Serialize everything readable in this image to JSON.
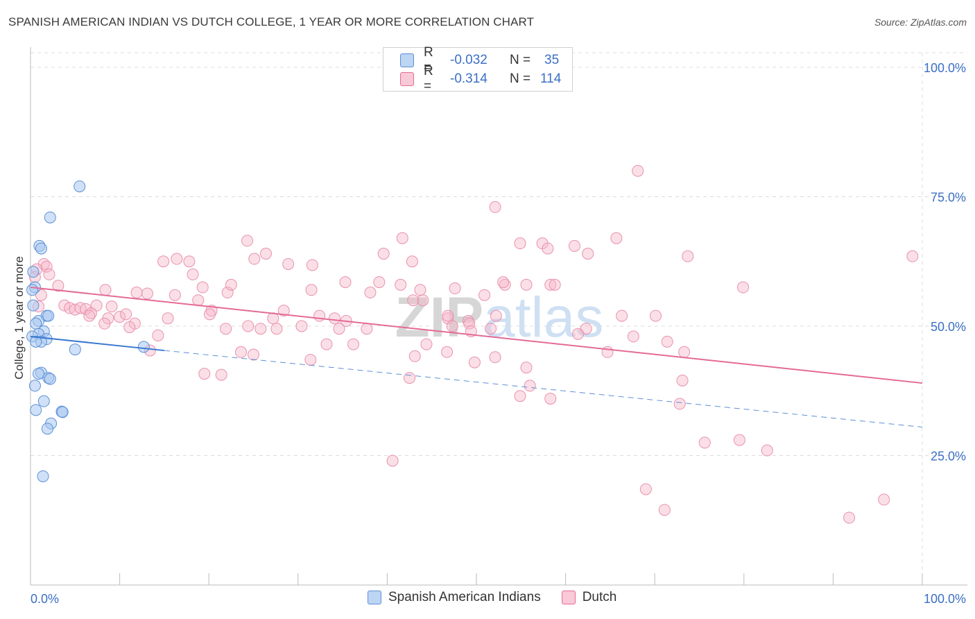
{
  "title": "SPANISH AMERICAN INDIAN VS DUTCH COLLEGE, 1 YEAR OR MORE CORRELATION CHART",
  "source": "Source: ZipAtlas.com",
  "watermark": "ZIPatlas",
  "colors": {
    "blue": "#5b8fd6",
    "blue_fill": "#a9c8f0",
    "pink": "#e46a96",
    "pink_fill": "#f6b8ca",
    "axis_label": "#3b6fc5"
  },
  "legend": {
    "rows": [
      {
        "r_label": "R =",
        "r_value": "-0.032",
        "n_label": "N =",
        "n_value": "35"
      },
      {
        "r_label": "R =",
        "r_value": "-0.314",
        "n_label": "N =",
        "n_value": "114"
      }
    ]
  },
  "bottom_legend": {
    "series1": "Spanish American Indians",
    "series2": "Dutch"
  },
  "chart_data": {
    "type": "scatter",
    "title": "SPANISH AMERICAN INDIAN VS DUTCH COLLEGE, 1 YEAR OR MORE CORRELATION CHART",
    "xlabel": "",
    "ylabel": "College, 1 year or more",
    "xlim": [
      0,
      100
    ],
    "ylim": [
      0,
      105
    ],
    "x_tick_labels": {
      "left": "0.0%",
      "right": "100.0%"
    },
    "y_ticks": [
      {
        "value": 25,
        "label": "25.0%"
      },
      {
        "value": 50,
        "label": "50.0%"
      },
      {
        "value": 75,
        "label": "75.0%"
      },
      {
        "value": 100,
        "label": "100.0%"
      }
    ],
    "grid": true,
    "series": [
      {
        "name": "Spanish American Indians",
        "color": "#5b8fd6",
        "trend": {
          "x0": 0,
          "y0": 48,
          "x1": 15,
          "y1": 45.3,
          "dash_x1": 100,
          "dash_y1": 30.5
        },
        "points": [
          [
            5.5,
            77
          ],
          [
            2.2,
            71
          ],
          [
            1.0,
            65.5
          ],
          [
            1.2,
            65
          ],
          [
            0.3,
            60.5
          ],
          [
            0.5,
            57.5
          ],
          [
            0.2,
            57
          ],
          [
            0.3,
            54
          ],
          [
            1.8,
            52
          ],
          [
            2.0,
            52
          ],
          [
            0.9,
            51
          ],
          [
            0.6,
            50.5
          ],
          [
            1.5,
            49
          ],
          [
            0.9,
            48.5
          ],
          [
            0.2,
            48
          ],
          [
            1.8,
            47.5
          ],
          [
            1.2,
            47
          ],
          [
            0.6,
            47
          ],
          [
            5.0,
            45.5
          ],
          [
            12.7,
            46
          ],
          [
            1.2,
            41
          ],
          [
            0.9,
            40.8
          ],
          [
            2.0,
            40
          ],
          [
            2.2,
            39.8
          ],
          [
            0.5,
            38.5
          ],
          [
            1.5,
            35.5
          ],
          [
            3.5,
            33.5
          ],
          [
            3.6,
            33.4
          ],
          [
            0.6,
            33.8
          ],
          [
            2.3,
            31.2
          ],
          [
            1.9,
            30.2
          ],
          [
            1.4,
            21
          ]
        ]
      },
      {
        "name": "Dutch",
        "color": "#e46a96",
        "trend": {
          "x0": 0,
          "y0": 57.5,
          "x1": 100,
          "y1": 39.0
        },
        "points": [
          [
            1.5,
            62
          ],
          [
            1.8,
            61.5
          ],
          [
            0.7,
            61
          ],
          [
            2.1,
            60
          ],
          [
            0.5,
            59.5
          ],
          [
            3.1,
            57.8
          ],
          [
            1.2,
            56
          ],
          [
            0.9,
            53.8
          ],
          [
            3.8,
            54
          ],
          [
            4.4,
            53.5
          ],
          [
            5.0,
            53.2
          ],
          [
            5.6,
            53.5
          ],
          [
            6.2,
            53.3
          ],
          [
            7.4,
            54
          ],
          [
            9.1,
            53.8
          ],
          [
            6.8,
            52.5
          ],
          [
            8.7,
            51.5
          ],
          [
            10.0,
            51.8
          ],
          [
            10.7,
            52.3
          ],
          [
            8.4,
            57
          ],
          [
            11.9,
            56.5
          ],
          [
            13.1,
            56.3
          ],
          [
            14.9,
            62.5
          ],
          [
            16.4,
            63
          ],
          [
            17.8,
            62.5
          ],
          [
            18.2,
            60
          ],
          [
            19.3,
            57.5
          ],
          [
            22.1,
            56.5
          ],
          [
            16.2,
            56
          ],
          [
            18.8,
            55
          ],
          [
            15.4,
            51.5
          ],
          [
            11.7,
            50.5
          ],
          [
            8.3,
            50.5
          ],
          [
            20.3,
            53
          ],
          [
            20.1,
            52.3
          ],
          [
            22.5,
            58
          ],
          [
            24.3,
            66.5
          ],
          [
            25.1,
            63
          ],
          [
            26.4,
            64
          ],
          [
            28.9,
            62
          ],
          [
            31.6,
            61.8
          ],
          [
            31.5,
            57
          ],
          [
            28.4,
            53
          ],
          [
            27.2,
            51.5
          ],
          [
            25.8,
            49.5
          ],
          [
            24.4,
            50
          ],
          [
            21.9,
            49.5
          ],
          [
            23.6,
            45
          ],
          [
            27.6,
            49.5
          ],
          [
            30.4,
            50
          ],
          [
            32.4,
            52
          ],
          [
            34.1,
            51.5
          ],
          [
            35.4,
            51
          ],
          [
            34.6,
            49.5
          ],
          [
            37.7,
            49.5
          ],
          [
            36.2,
            46.5
          ],
          [
            31.4,
            43.5
          ],
          [
            33.2,
            46.5
          ],
          [
            35.3,
            58.5
          ],
          [
            39.1,
            58.5
          ],
          [
            38.1,
            56.5
          ],
          [
            41.5,
            58
          ],
          [
            44.0,
            55
          ],
          [
            46.8,
            51.5
          ],
          [
            47.3,
            50
          ],
          [
            49.1,
            51
          ],
          [
            50.9,
            56
          ],
          [
            49.2,
            50.5
          ],
          [
            53.2,
            58
          ],
          [
            53.0,
            58.5
          ],
          [
            55.6,
            58
          ],
          [
            58.3,
            58
          ],
          [
            58.8,
            58
          ],
          [
            57.4,
            66
          ],
          [
            54.9,
            66
          ],
          [
            52.1,
            73
          ],
          [
            58.0,
            65
          ],
          [
            61.0,
            65.5
          ],
          [
            62.5,
            64
          ],
          [
            65.7,
            67
          ],
          [
            68.1,
            80
          ],
          [
            66.3,
            52
          ],
          [
            62.3,
            49.5
          ],
          [
            61.4,
            48.5
          ],
          [
            64.7,
            45
          ],
          [
            67.6,
            48
          ],
          [
            52.1,
            44
          ],
          [
            51.6,
            49.5
          ],
          [
            55.6,
            42
          ],
          [
            52.2,
            52
          ],
          [
            42.8,
            62.5
          ],
          [
            41.7,
            67
          ],
          [
            39.6,
            64
          ],
          [
            43.7,
            57
          ],
          [
            47.6,
            57.3
          ],
          [
            44.4,
            46.5
          ],
          [
            42.5,
            40
          ],
          [
            46.7,
            45
          ],
          [
            43.1,
            44.2
          ],
          [
            40.6,
            24
          ],
          [
            49.4,
            49
          ],
          [
            49.8,
            43
          ],
          [
            42.9,
            55
          ],
          [
            46.8,
            52
          ],
          [
            58.3,
            36
          ],
          [
            54.9,
            36.5
          ],
          [
            56.0,
            38.5
          ],
          [
            73.7,
            63.5
          ],
          [
            79.9,
            57.5
          ],
          [
            98.9,
            63.5
          ],
          [
            70.1,
            52
          ],
          [
            73.3,
            45
          ],
          [
            71.4,
            47
          ],
          [
            11.1,
            49.8
          ],
          [
            6.6,
            52
          ],
          [
            13.4,
            45.3
          ],
          [
            19.5,
            40.8
          ],
          [
            21.4,
            40.6
          ],
          [
            25.0,
            44.5
          ],
          [
            14.3,
            48.2
          ],
          [
            73.1,
            39.5
          ],
          [
            72.8,
            35
          ],
          [
            75.6,
            27.5
          ],
          [
            79.5,
            28
          ],
          [
            82.6,
            26
          ],
          [
            69.0,
            18.5
          ],
          [
            71.1,
            14.5
          ],
          [
            91.8,
            13
          ],
          [
            95.7,
            16.5
          ]
        ]
      }
    ]
  }
}
